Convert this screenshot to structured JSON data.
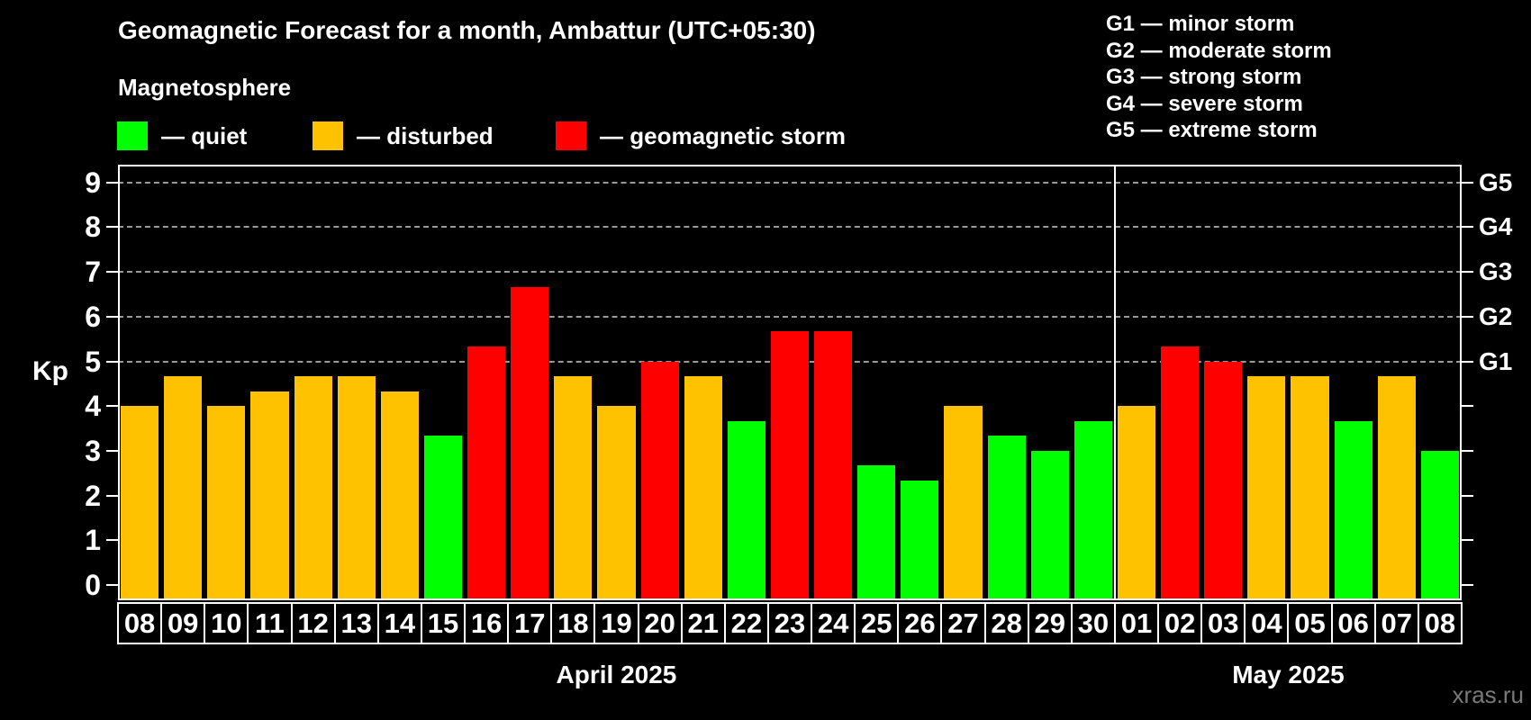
{
  "header": {
    "title": "Geomagnetic Forecast for a month, Ambattur (UTC+05:30)",
    "subtitle": "Magnetosphere"
  },
  "legend": [
    {
      "label": "— quiet",
      "color": "#00ff00"
    },
    {
      "label": "— disturbed",
      "color": "#ffc200"
    },
    {
      "label": "— geomagnetic storm",
      "color": "#ff0000"
    }
  ],
  "storm_scale_legend": [
    "G1 — minor storm",
    "G2 — moderate storm",
    "G3 — strong storm",
    "G4 — severe storm",
    "G5 — extreme storm"
  ],
  "watermark": "xras.ru",
  "chart_data": {
    "type": "bar",
    "title": "Geomagnetic Forecast for a month, Ambattur (UTC+05:30)",
    "xlabel": "",
    "ylabel": "Kp",
    "ylim": [
      0,
      9
    ],
    "y_ticks": [
      0,
      1,
      2,
      3,
      4,
      5,
      6,
      7,
      8,
      9
    ],
    "gridlines_at": [
      5,
      6,
      7,
      8,
      9
    ],
    "grid_dashed": true,
    "right_axis_labels": [
      {
        "kp": 5,
        "label": "G1"
      },
      {
        "kp": 6,
        "label": "G2"
      },
      {
        "kp": 7,
        "label": "G3"
      },
      {
        "kp": 8,
        "label": "G4"
      },
      {
        "kp": 9,
        "label": "G5"
      }
    ],
    "status_colors": {
      "quiet": "#00ff00",
      "disturbed": "#ffc200",
      "storm": "#ff0000"
    },
    "months": [
      {
        "label": "April 2025",
        "days": [
          {
            "day": "08",
            "kp": 4.0,
            "status": "disturbed"
          },
          {
            "day": "09",
            "kp": 4.67,
            "status": "disturbed"
          },
          {
            "day": "10",
            "kp": 4.0,
            "status": "disturbed"
          },
          {
            "day": "11",
            "kp": 4.33,
            "status": "disturbed"
          },
          {
            "day": "12",
            "kp": 4.67,
            "status": "disturbed"
          },
          {
            "day": "13",
            "kp": 4.67,
            "status": "disturbed"
          },
          {
            "day": "14",
            "kp": 4.33,
            "status": "disturbed"
          },
          {
            "day": "15",
            "kp": 3.33,
            "status": "quiet"
          },
          {
            "day": "16",
            "kp": 5.33,
            "status": "storm"
          },
          {
            "day": "17",
            "kp": 6.67,
            "status": "storm"
          },
          {
            "day": "18",
            "kp": 4.67,
            "status": "disturbed"
          },
          {
            "day": "19",
            "kp": 4.0,
            "status": "disturbed"
          },
          {
            "day": "20",
            "kp": 5.0,
            "status": "storm"
          },
          {
            "day": "21",
            "kp": 4.67,
            "status": "disturbed"
          },
          {
            "day": "22",
            "kp": 3.67,
            "status": "quiet"
          },
          {
            "day": "23",
            "kp": 5.67,
            "status": "storm"
          },
          {
            "day": "24",
            "kp": 5.67,
            "status": "storm"
          },
          {
            "day": "25",
            "kp": 2.67,
            "status": "quiet"
          },
          {
            "day": "26",
            "kp": 2.33,
            "status": "quiet"
          },
          {
            "day": "27",
            "kp": 4.0,
            "status": "disturbed"
          },
          {
            "day": "28",
            "kp": 3.33,
            "status": "quiet"
          },
          {
            "day": "29",
            "kp": 3.0,
            "status": "quiet"
          },
          {
            "day": "30",
            "kp": 3.67,
            "status": "quiet"
          }
        ]
      },
      {
        "label": "May 2025",
        "days": [
          {
            "day": "01",
            "kp": 4.0,
            "status": "disturbed"
          },
          {
            "day": "02",
            "kp": 5.33,
            "status": "storm"
          },
          {
            "day": "03",
            "kp": 5.0,
            "status": "storm"
          },
          {
            "day": "04",
            "kp": 4.67,
            "status": "disturbed"
          },
          {
            "day": "05",
            "kp": 4.67,
            "status": "disturbed"
          },
          {
            "day": "06",
            "kp": 3.67,
            "status": "quiet"
          },
          {
            "day": "07",
            "kp": 4.67,
            "status": "disturbed"
          },
          {
            "day": "08",
            "kp": 3.0,
            "status": "quiet"
          }
        ]
      }
    ]
  }
}
